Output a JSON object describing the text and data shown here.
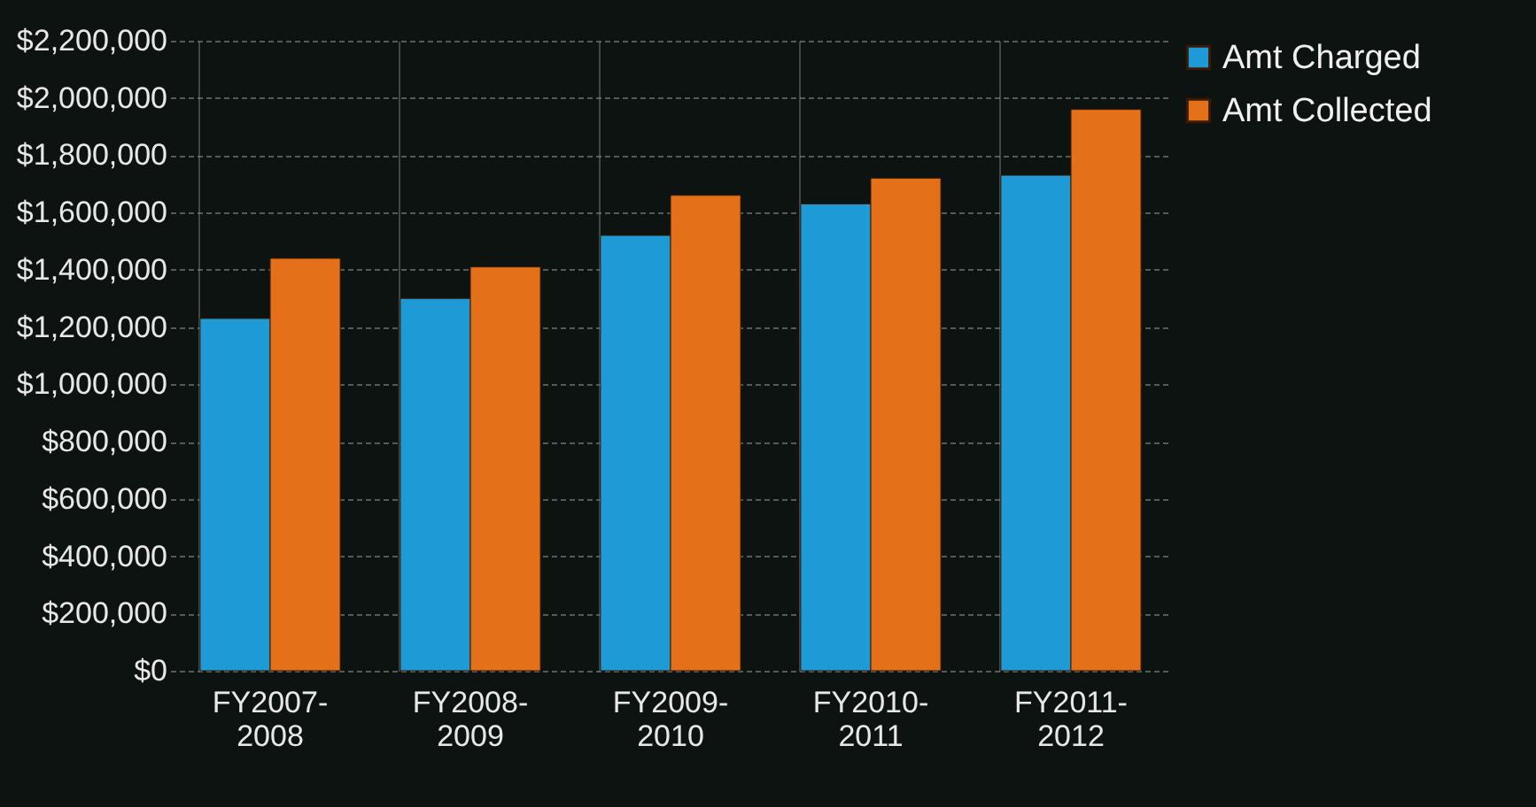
{
  "chart_data": {
    "type": "bar",
    "categories": [
      "FY2007-2008",
      "FY2008-2009",
      "FY2009-2010",
      "FY2010-2011",
      "FY2011-2012"
    ],
    "series": [
      {
        "name": "Amt Charged",
        "color": "#1e9ad6",
        "values": [
          1230000,
          1300000,
          1520000,
          1630000,
          1730000
        ]
      },
      {
        "name": "Amt Collected",
        "color": "#e5701a",
        "values": [
          1440000,
          1410000,
          1660000,
          1720000,
          1960000
        ]
      }
    ],
    "ylim": [
      0,
      2200000
    ],
    "yticks": [
      {
        "value": 0,
        "label": "$0"
      },
      {
        "value": 200000,
        "label": "$200,000"
      },
      {
        "value": 400000,
        "label": "$400,000"
      },
      {
        "value": 600000,
        "label": "$600,000"
      },
      {
        "value": 800000,
        "label": "$800,000"
      },
      {
        "value": 1000000,
        "label": "$1,000,000"
      },
      {
        "value": 1200000,
        "label": "$1,200,000"
      },
      {
        "value": 1400000,
        "label": "$1,400,000"
      },
      {
        "value": 1600000,
        "label": "$1,600,000"
      },
      {
        "value": 1800000,
        "label": "$1,800,000"
      },
      {
        "value": 2000000,
        "label": "$2,000,000"
      },
      {
        "value": 2200000,
        "label": "$2,200,000"
      }
    ],
    "grid": true,
    "legend": "right"
  }
}
